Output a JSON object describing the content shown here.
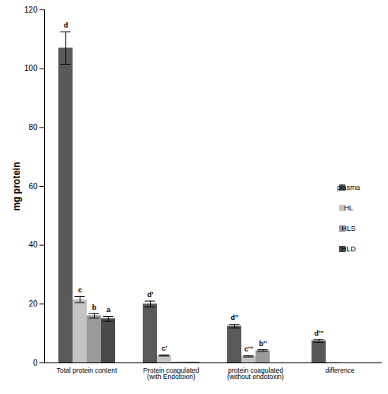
{
  "chart_data": {
    "type": "bar",
    "y_label": "mg protein",
    "categories": [
      "Total protein content",
      "Protein coagulated (with Endotoxin)",
      "protein coagulated (without endotoxin)",
      "difference"
    ],
    "series": [
      {
        "name": "plasma",
        "color": "#595959",
        "values": [
          107,
          20,
          12.5,
          7.5
        ],
        "errors": [
          5.5,
          1,
          0.6,
          0.5
        ],
        "letters": [
          "d",
          "d'",
          "d''",
          "d'''"
        ]
      },
      {
        "name": "HL",
        "color": "#c4c4c4",
        "values": [
          21.5,
          2.5,
          2.2,
          0.2
        ],
        "errors": [
          1,
          0.2,
          0.2,
          0
        ],
        "letters": [
          "c",
          "c'",
          "c'''",
          null
        ]
      },
      {
        "name": "HLS",
        "color": "#9a9a9a",
        "values": [
          16,
          0.3,
          4.2,
          0
        ],
        "errors": [
          0.8,
          0,
          0.3,
          0
        ],
        "letters": [
          "b",
          null,
          "b''",
          null
        ]
      },
      {
        "name": "HLD",
        "color": "#4a4a4a",
        "values": [
          15,
          0.2,
          0,
          0
        ],
        "errors": [
          0.8,
          0,
          0,
          0
        ],
        "letters": [
          "a",
          null,
          null,
          null
        ]
      }
    ],
    "ylim": [
      0,
      120
    ],
    "yticks": [
      0,
      20,
      40,
      60,
      80,
      100,
      120
    ],
    "grid": false,
    "legend": "right"
  }
}
